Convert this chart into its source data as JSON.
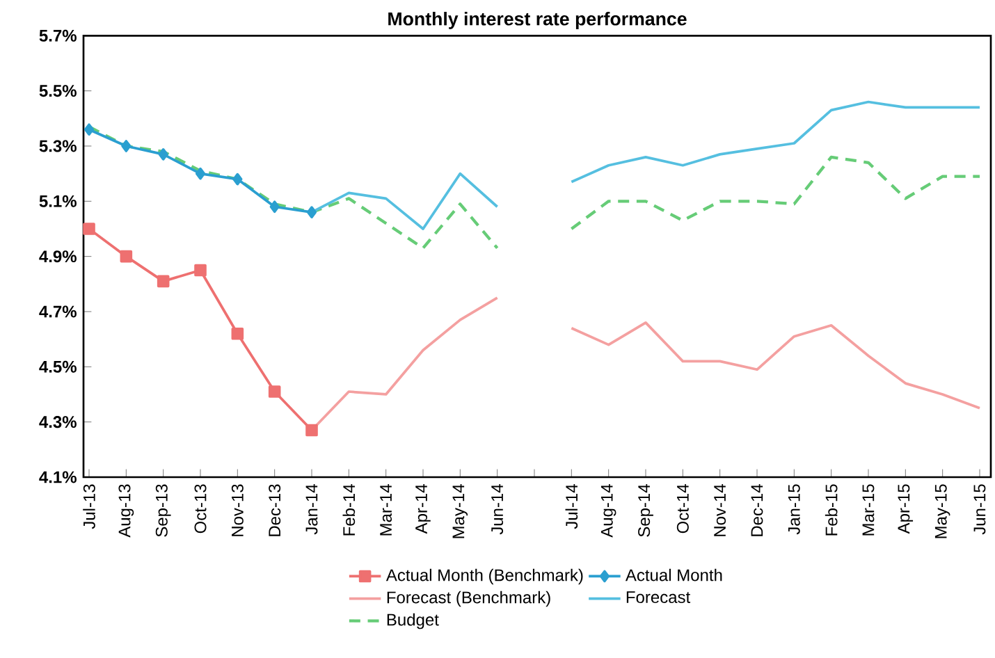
{
  "chart_data": {
    "type": "line",
    "title": "Monthly interest rate performance",
    "categories": [
      "Jul-13",
      "Aug-13",
      "Sep-13",
      "Oct-13",
      "Nov-13",
      "Dec-13",
      "Jan-14",
      "Feb-14",
      "Mar-14",
      "Apr-14",
      "May-14",
      "Jun-14",
      null,
      "Jul-14",
      "Aug-14",
      "Sep-14",
      "Oct-14",
      "Nov-14",
      "Dec-14",
      "Jan-15",
      "Feb-15",
      "Mar-15",
      "Apr-15",
      "May-15",
      "Jun-15"
    ],
    "series": [
      {
        "name": "Actual Month (Benchmark)",
        "color": "#ee7070",
        "marker": "square",
        "line_style": "solid",
        "values": [
          5.0,
          4.9,
          4.81,
          4.85,
          4.62,
          4.41,
          4.27,
          null,
          null,
          null,
          null,
          null,
          null,
          null,
          null,
          null,
          null,
          null,
          null,
          null,
          null,
          null,
          null,
          null,
          null
        ]
      },
      {
        "name": "Forecast (Benchmark)",
        "color": "#f4a0a0",
        "marker": "none",
        "line_style": "solid",
        "values": [
          null,
          null,
          null,
          null,
          null,
          null,
          4.27,
          4.41,
          4.4,
          4.56,
          4.67,
          4.75,
          null,
          4.64,
          4.58,
          4.66,
          4.52,
          4.52,
          4.49,
          4.61,
          4.65,
          4.54,
          4.44,
          4.4,
          4.35
        ]
      },
      {
        "name": "Budget",
        "color": "#66cc77",
        "marker": "none",
        "line_style": "dashed",
        "values": [
          5.37,
          5.3,
          5.28,
          5.21,
          5.18,
          5.09,
          5.06,
          5.11,
          5.02,
          4.93,
          5.09,
          4.93,
          null,
          5.0,
          5.1,
          5.1,
          5.03,
          5.1,
          5.1,
          5.09,
          5.26,
          5.24,
          5.11,
          5.19,
          5.19
        ]
      },
      {
        "name": "Actual Month",
        "color": "#2a9fd0",
        "marker": "diamond",
        "line_style": "solid",
        "values": [
          5.36,
          5.3,
          5.27,
          5.2,
          5.18,
          5.08,
          5.06,
          null,
          null,
          null,
          null,
          null,
          null,
          null,
          null,
          null,
          null,
          null,
          null,
          null,
          null,
          null,
          null,
          null,
          null
        ]
      },
      {
        "name": "Forecast",
        "color": "#55bfe0",
        "marker": "none",
        "line_style": "solid",
        "values": [
          null,
          null,
          null,
          null,
          null,
          null,
          5.06,
          5.13,
          5.11,
          5.0,
          5.2,
          5.08,
          null,
          5.17,
          5.23,
          5.26,
          5.23,
          5.27,
          5.29,
          5.31,
          5.43,
          5.46,
          5.44,
          5.44,
          5.44
        ]
      }
    ],
    "ylim": [
      4.1,
      5.7
    ],
    "yticks": [
      {
        "value": 4.1,
        "label": "4.1%"
      },
      {
        "value": 4.3,
        "label": "4.3%"
      },
      {
        "value": 4.5,
        "label": "4.5%"
      },
      {
        "value": 4.7,
        "label": "4.7%"
      },
      {
        "value": 4.9,
        "label": "4.9%"
      },
      {
        "value": 5.1,
        "label": "5.1%"
      },
      {
        "value": 5.3,
        "label": "5.3%"
      },
      {
        "value": 5.5,
        "label": "5.5%"
      },
      {
        "value": 5.7,
        "label": "5.7%"
      }
    ],
    "legend": "bottom"
  }
}
